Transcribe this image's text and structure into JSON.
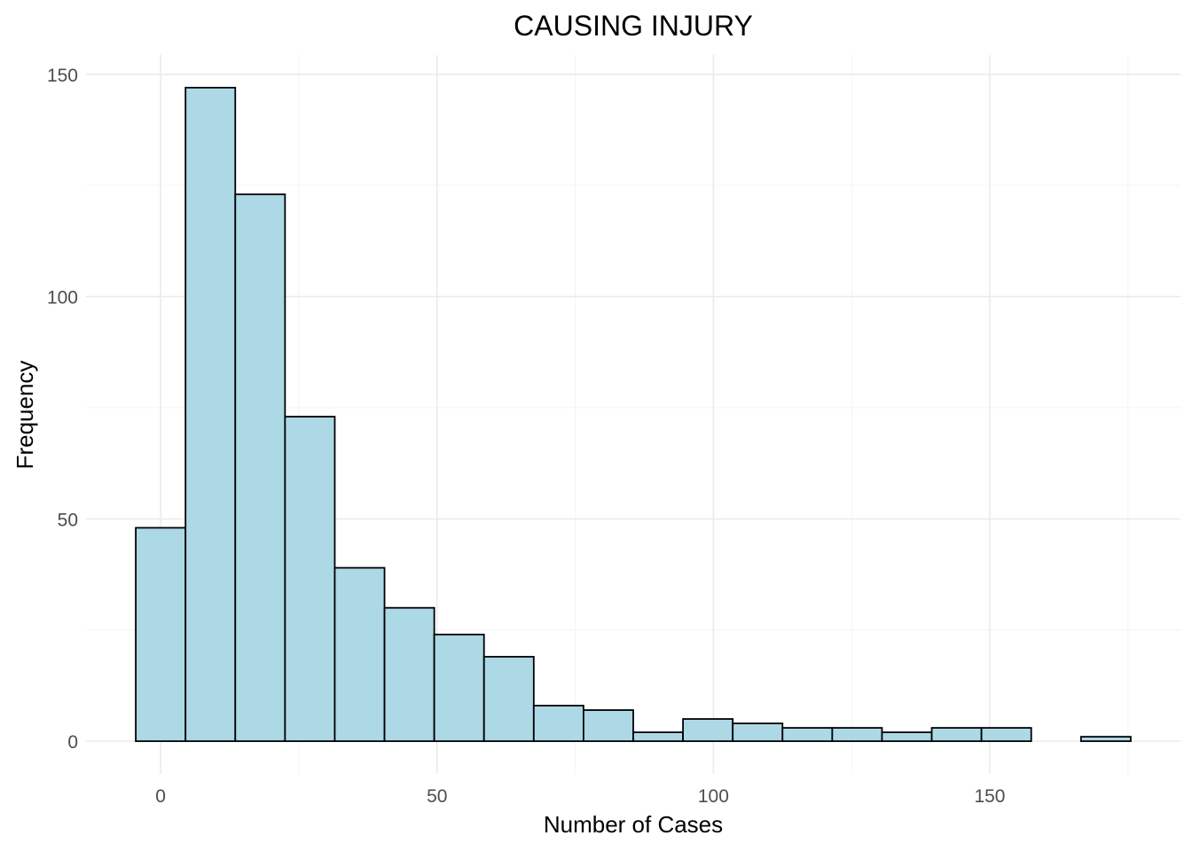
{
  "chart_data": {
    "type": "bar",
    "title": "CAUSING INJURY",
    "xlabel": "Number of Cases",
    "ylabel": "Frequency",
    "bin_width": 9,
    "bins": [
      {
        "start": -4.5,
        "end": 4.5,
        "count": 48
      },
      {
        "start": 4.5,
        "end": 13.5,
        "count": 147
      },
      {
        "start": 13.5,
        "end": 22.5,
        "count": 123
      },
      {
        "start": 22.5,
        "end": 31.5,
        "count": 73
      },
      {
        "start": 31.5,
        "end": 40.5,
        "count": 39
      },
      {
        "start": 40.5,
        "end": 49.5,
        "count": 30
      },
      {
        "start": 49.5,
        "end": 58.5,
        "count": 24
      },
      {
        "start": 58.5,
        "end": 67.5,
        "count": 19
      },
      {
        "start": 67.5,
        "end": 76.5,
        "count": 8
      },
      {
        "start": 76.5,
        "end": 85.5,
        "count": 7
      },
      {
        "start": 85.5,
        "end": 94.5,
        "count": 2
      },
      {
        "start": 94.5,
        "end": 103.5,
        "count": 5
      },
      {
        "start": 103.5,
        "end": 112.5,
        "count": 4
      },
      {
        "start": 112.5,
        "end": 121.5,
        "count": 3
      },
      {
        "start": 121.5,
        "end": 130.5,
        "count": 3
      },
      {
        "start": 130.5,
        "end": 139.5,
        "count": 2
      },
      {
        "start": 139.5,
        "end": 148.5,
        "count": 3
      },
      {
        "start": 148.5,
        "end": 157.5,
        "count": 3
      },
      {
        "start": 157.5,
        "end": 166.5,
        "count": 0
      },
      {
        "start": 166.5,
        "end": 175.5,
        "count": 1
      }
    ],
    "xlim": [
      -13.5,
      184.5
    ],
    "ylim": [
      -7.35,
      154.35
    ],
    "x_ticks": [
      0,
      50,
      100,
      150
    ],
    "x_tick_labels": [
      "0",
      "50",
      "100",
      "150"
    ],
    "y_ticks": [
      0,
      50,
      100,
      150
    ],
    "y_tick_labels": [
      "0",
      "50",
      "100",
      "150"
    ],
    "x_minor_ticks": [
      25,
      75,
      125,
      175
    ],
    "y_minor_ticks": [
      25,
      75,
      125
    ],
    "bar_fill": "#add8e6",
    "bar_outline": "#000000",
    "grid": true,
    "legend": "none"
  }
}
